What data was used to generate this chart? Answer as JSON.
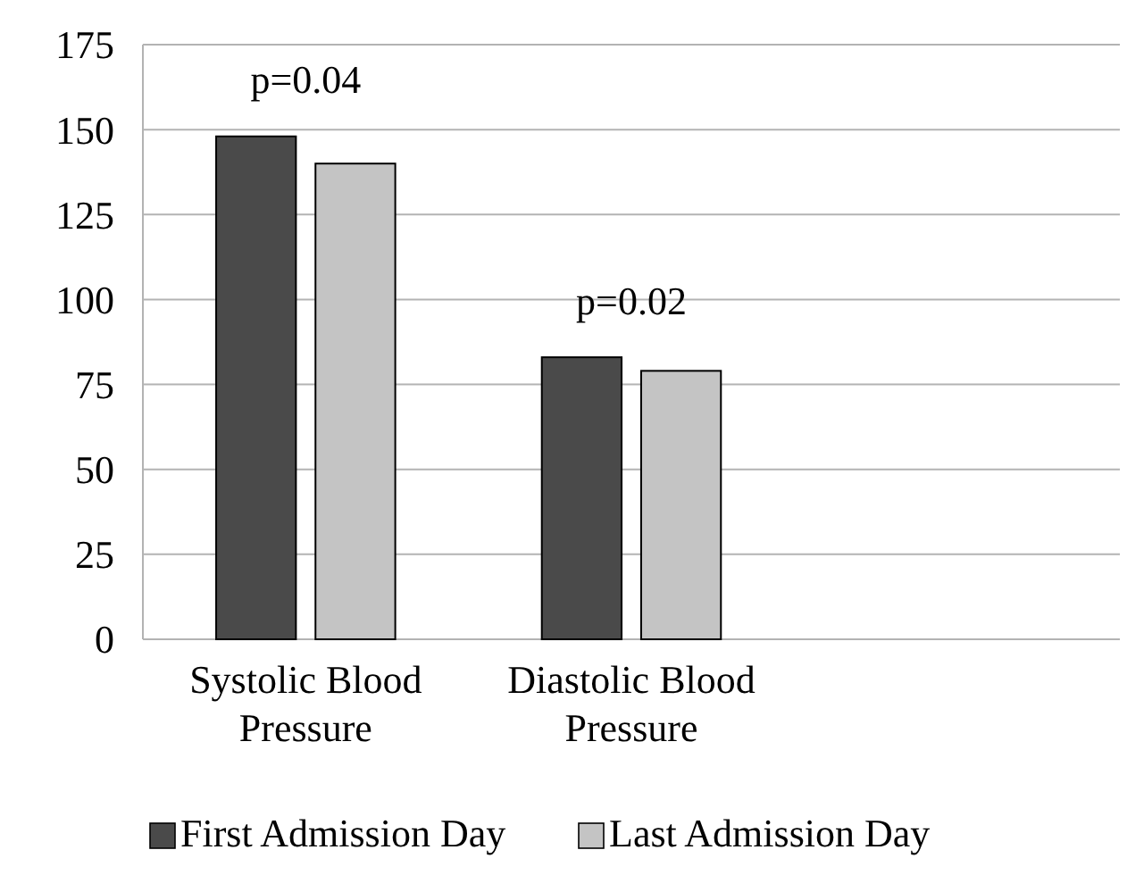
{
  "chart_data": {
    "type": "bar",
    "categories": [
      "Systolic Blood Pressure",
      "Diastolic Blood Pressure",
      null
    ],
    "series": [
      {
        "name": "First Admission Day",
        "color": "#4a4a4a",
        "values": [
          148,
          83,
          null
        ]
      },
      {
        "name": "Last Admission Day",
        "color": "#c4c4c4",
        "values": [
          140,
          79,
          null
        ]
      }
    ],
    "ylim": [
      0,
      175
    ],
    "yticks": [
      0,
      25,
      50,
      75,
      100,
      125,
      150,
      175
    ],
    "grid": "y",
    "legend": "bottom",
    "annotations": [
      "p=0.04",
      "p=0.02"
    ]
  }
}
